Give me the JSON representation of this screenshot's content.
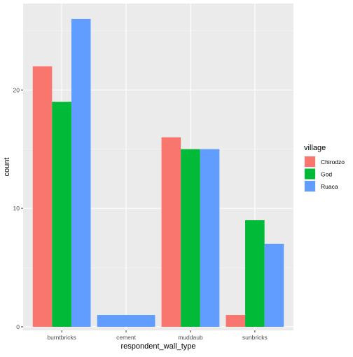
{
  "chart_data": {
    "type": "bar",
    "xlabel": "respondent_wall_type",
    "ylabel": "count",
    "categories": [
      "burntbricks",
      "cement",
      "muddaub",
      "sunbricks"
    ],
    "series": [
      {
        "name": "Chirodzo",
        "color": "#F8766D",
        "values": [
          22,
          null,
          16,
          1
        ]
      },
      {
        "name": "God",
        "color": "#00BA38",
        "values": [
          19,
          null,
          15,
          9
        ]
      },
      {
        "name": "Ruaca",
        "color": "#619CFF",
        "values": [
          26,
          1,
          15,
          7
        ]
      }
    ],
    "ylim": [
      -0.3,
      27.3
    ],
    "yticks": [
      0,
      10,
      20
    ],
    "legend": {
      "title": "village",
      "position": "right"
    },
    "grid": true
  }
}
